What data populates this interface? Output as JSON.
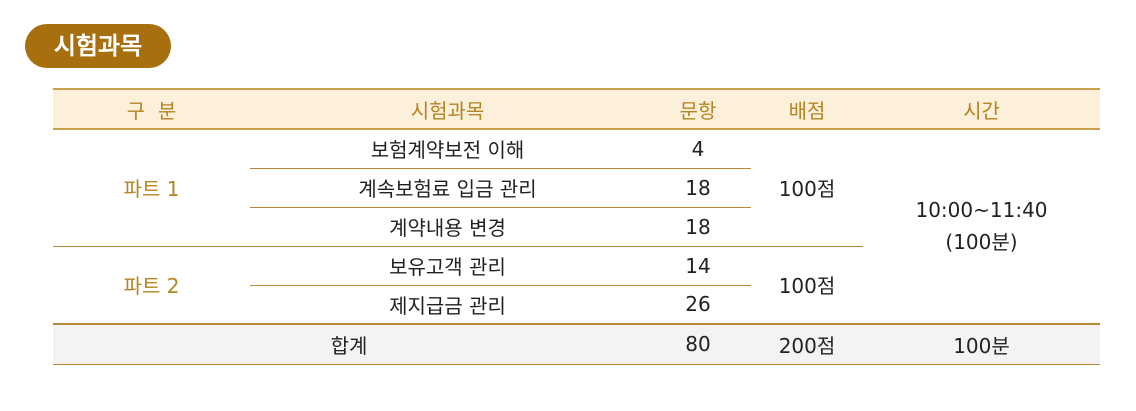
{
  "badge": {
    "label": "시험과목"
  },
  "table": {
    "headers": {
      "category": "구  분",
      "subject": "시험과목",
      "questions": "문항",
      "points": "배점",
      "time": "시간"
    },
    "parts": [
      {
        "name": "파트 1",
        "points": "100점",
        "rows": [
          {
            "subject": "보험계약보전 이해",
            "questions": "4"
          },
          {
            "subject": "계속보험료 입금 관리",
            "questions": "18"
          },
          {
            "subject": "계약내용 변경",
            "questions": "18"
          }
        ]
      },
      {
        "name": "파트 2",
        "points": "100점",
        "rows": [
          {
            "subject": "보유고객 관리",
            "questions": "14"
          },
          {
            "subject": "제지급금 관리",
            "questions": "26"
          }
        ]
      }
    ],
    "time": {
      "range": "10:00~11:40",
      "duration": "(100분)"
    },
    "total": {
      "label": "합계",
      "questions": "80",
      "points": "200점",
      "time": "100분"
    }
  },
  "colors": {
    "badge_bg": "#a86f0e",
    "header_bg": "#fdf0da",
    "header_text": "#b3841f",
    "border": "#b8893a",
    "total_bg": "#f3f3f3"
  }
}
